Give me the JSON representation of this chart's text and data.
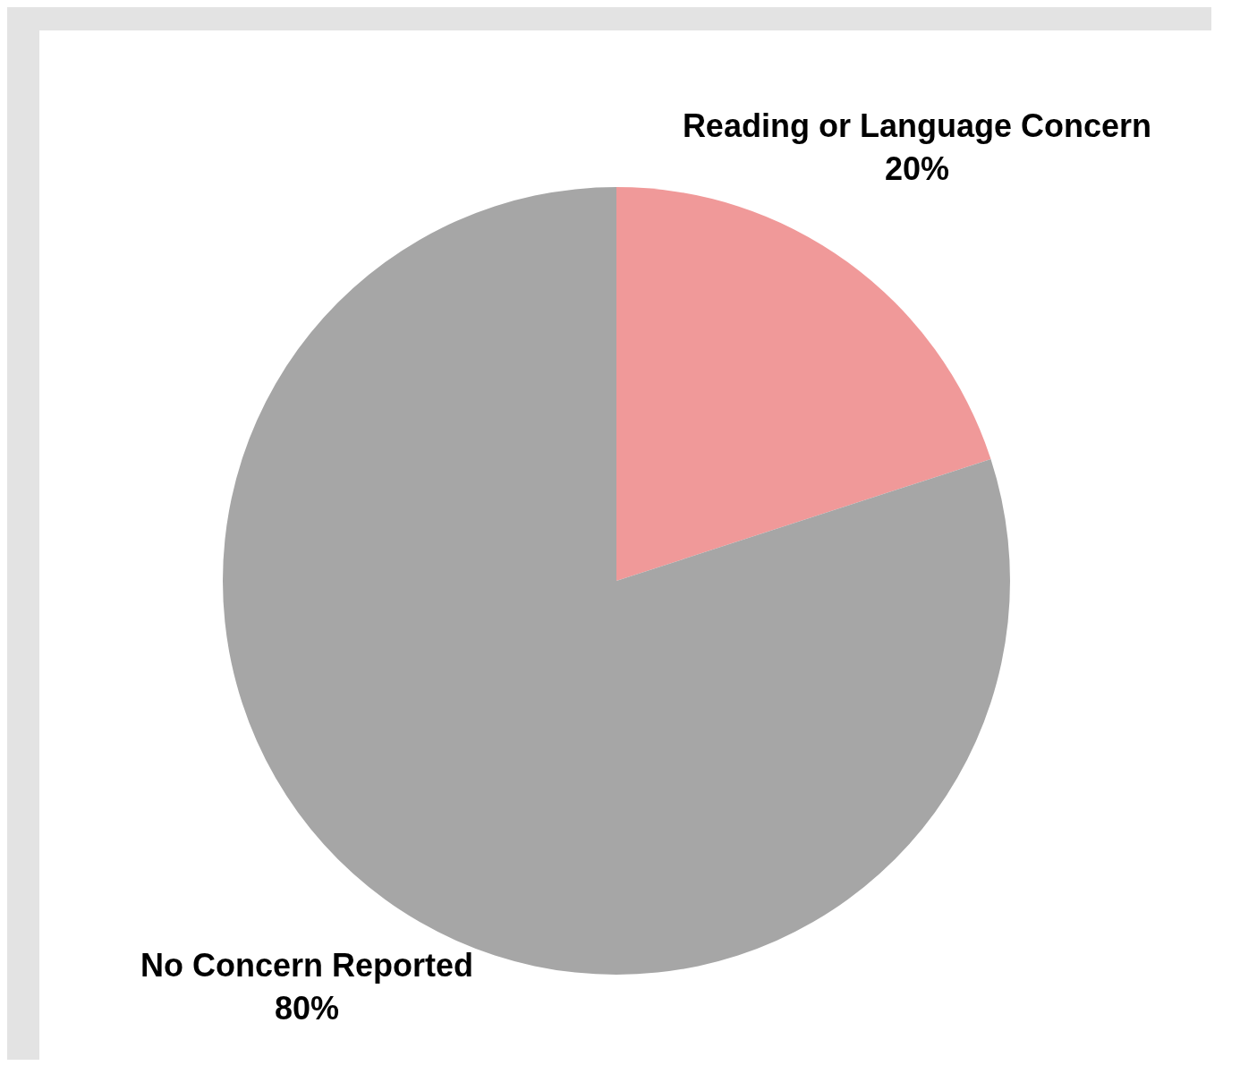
{
  "chart_data": {
    "type": "pie",
    "categories": [
      "Reading or Language Concern",
      "No Concern Reported"
    ],
    "values": [
      20,
      80
    ],
    "value_labels": [
      "20%",
      "80%"
    ],
    "colors": [
      "#f09999",
      "#a6a6a6"
    ],
    "legend": false
  }
}
